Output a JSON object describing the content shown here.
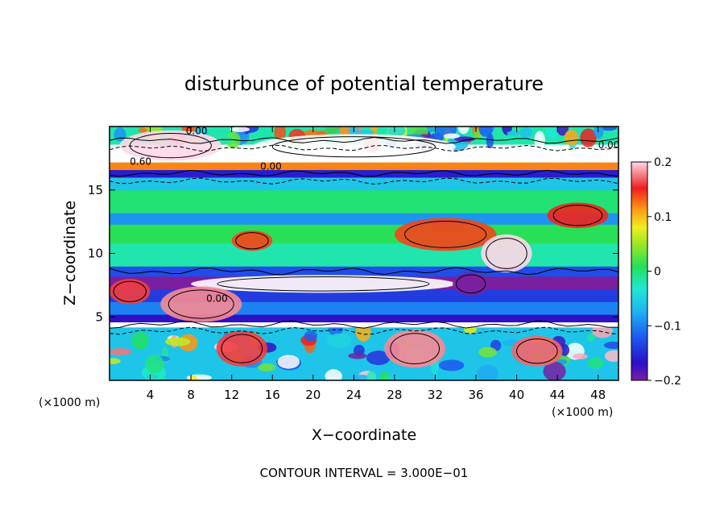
{
  "chart_data": {
    "type": "heatmap",
    "title": "disturbunce of potential temperature",
    "xlabel": "X−coordinate",
    "ylabel": "Z−coordinate",
    "x_unit_left": "(×1000 m)",
    "x_unit_right": "(×1000 m)",
    "xlim": [
      0,
      50
    ],
    "ylim": [
      0,
      20
    ],
    "xticks": [
      4,
      8,
      12,
      16,
      20,
      24,
      28,
      32,
      36,
      40,
      44,
      48
    ],
    "yticks": [
      5,
      10,
      15
    ],
    "colorbar": {
      "range": [
        -0.2,
        0.2
      ],
      "ticks": [
        {
          "value": 0.2,
          "label": "0.2"
        },
        {
          "value": 0.1,
          "label": "0.1"
        },
        {
          "value": 0,
          "label": "0"
        },
        {
          "value": -0.1,
          "label": "−0.1"
        },
        {
          "value": -0.2,
          "label": "−0.2"
        }
      ]
    },
    "contour_labels": [
      "0.00",
      "0.00",
      "0.60",
      "0.00",
      "0.00"
    ],
    "footer": "CONTOUR INTERVAL = 3.000E−01",
    "bands": [
      {
        "z0": 0.0,
        "z1": 4.2,
        "value": -0.06,
        "noisy": true
      },
      {
        "z0": 4.2,
        "z1": 4.6,
        "value": 0.25
      },
      {
        "z0": 4.6,
        "z1": 5.2,
        "value": -0.17
      },
      {
        "z0": 5.2,
        "z1": 6.2,
        "value": -0.1
      },
      {
        "z0": 6.2,
        "z1": 7.2,
        "value": -0.14
      },
      {
        "z0": 7.2,
        "z1": 8.2,
        "value": -0.22
      },
      {
        "z0": 8.2,
        "z1": 9.0,
        "value": -0.13
      },
      {
        "z0": 9.0,
        "z1": 10.8,
        "value": -0.02
      },
      {
        "z0": 10.8,
        "z1": 12.3,
        "value": 0.01
      },
      {
        "z0": 12.3,
        "z1": 13.2,
        "value": -0.09
      },
      {
        "z0": 13.2,
        "z1": 15.0,
        "value": 0.0
      },
      {
        "z0": 15.0,
        "z1": 16.0,
        "value": -0.06
      },
      {
        "z0": 16.0,
        "z1": 16.6,
        "value": -0.16
      },
      {
        "z0": 16.6,
        "z1": 17.2,
        "value": 0.12
      },
      {
        "z0": 17.2,
        "z1": 18.6,
        "value": 0.22
      },
      {
        "z0": 18.6,
        "z1": 20.0,
        "value": -0.02,
        "noisy": true
      }
    ],
    "patches": [
      {
        "x": 21,
        "z": 7.6,
        "rx": 13,
        "rz": 0.7,
        "value": 0.25
      },
      {
        "x": 35.5,
        "z": 7.6,
        "rx": 1.8,
        "rz": 0.9,
        "value": -0.22
      },
      {
        "x": 33,
        "z": 11.5,
        "rx": 5,
        "rz": 1.3,
        "value": 0.14
      },
      {
        "x": 39,
        "z": 10.0,
        "rx": 2.5,
        "rz": 1.5,
        "value": 0.2
      },
      {
        "x": 14,
        "z": 11,
        "rx": 2,
        "rz": 0.8,
        "value": 0.14
      },
      {
        "x": 9,
        "z": 6,
        "rx": 4,
        "rz": 1.4,
        "value": 0.18
      },
      {
        "x": 2,
        "z": 7,
        "rx": 2,
        "rz": 1,
        "value": 0.16
      },
      {
        "x": 46,
        "z": 13,
        "rx": 3,
        "rz": 1,
        "value": 0.15
      },
      {
        "x": 24,
        "z": 18.4,
        "rx": 10,
        "rz": 1,
        "value": 0.22
      },
      {
        "x": 6,
        "z": 18.5,
        "rx": 5,
        "rz": 1.2,
        "value": 0.2
      },
      {
        "x": 30,
        "z": 2.5,
        "rx": 3,
        "rz": 1.5,
        "value": 0.18
      },
      {
        "x": 13,
        "z": 2.5,
        "rx": 2.5,
        "rz": 1.4,
        "value": 0.16
      },
      {
        "x": 42,
        "z": 2.3,
        "rx": 2.5,
        "rz": 1.2,
        "value": 0.17
      }
    ]
  }
}
